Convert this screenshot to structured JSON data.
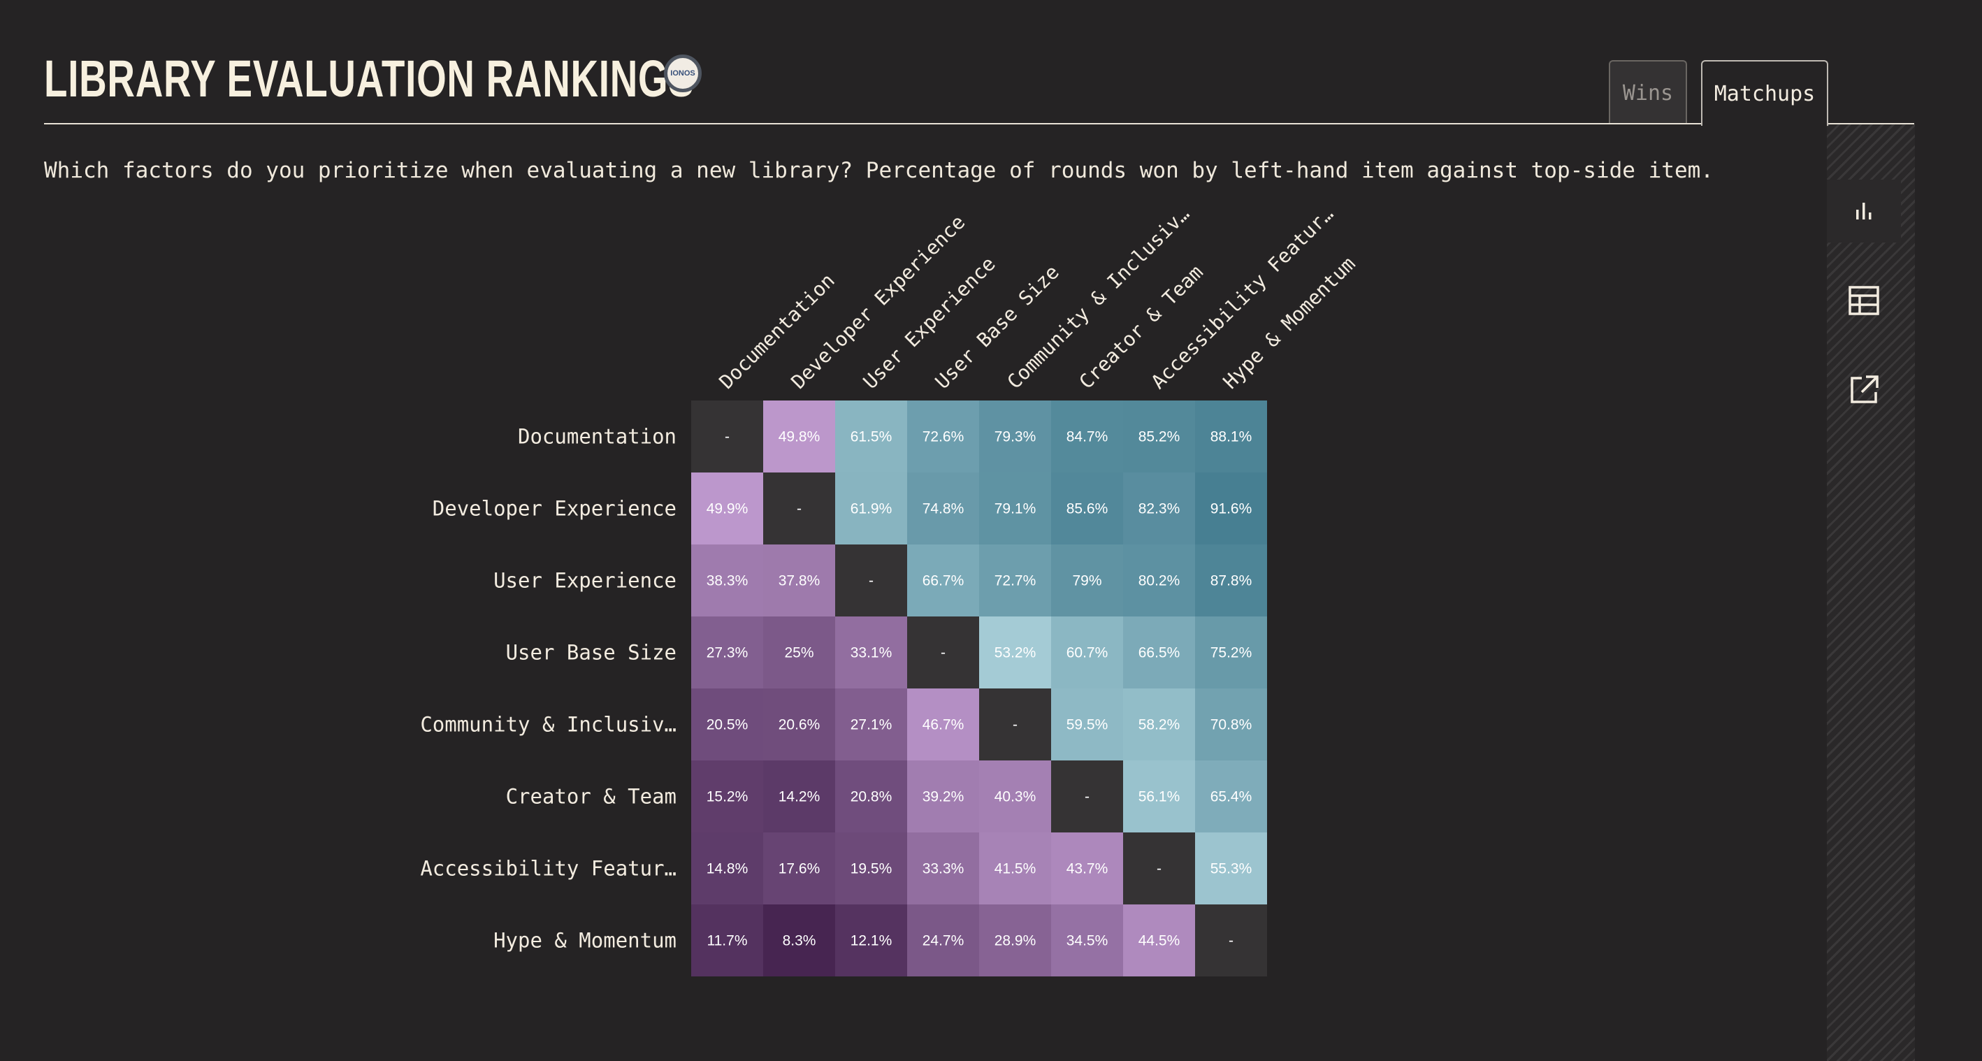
{
  "title": "LIBRARY EVALUATION RANKINGS",
  "logo_text": "IONOS",
  "tabs": [
    {
      "label": "Wins",
      "active": false
    },
    {
      "label": "Matchups",
      "active": true
    }
  ],
  "subtitle": "Which factors do you prioritize when evaluating a new library? Percentage of rounds won by left-hand item against top-side item.",
  "sidebar": {
    "buttons": [
      {
        "icon": "bar-chart-icon",
        "active": true
      },
      {
        "icon": "table-icon",
        "active": false
      },
      {
        "icon": "external-link-icon",
        "active": false
      }
    ]
  },
  "colors": {
    "background": "#252324",
    "diagonal": "#353334",
    "purple_dark": "#45234f",
    "purple_light": "#bc97cc",
    "teal_dark": "#467e91",
    "teal_light": "#b6dae2"
  },
  "chart_data": {
    "type": "heatmap",
    "row_labels": [
      "Documentation",
      "Developer Experience",
      "User Experience",
      "User Base Size",
      "Community & Inclusiv…",
      "Creator & Team",
      "Accessibility Featur…",
      "Hype & Momentum"
    ],
    "col_labels": [
      "Documentation",
      "Developer Experience",
      "User Experience",
      "User Base Size",
      "Community & Inclusiv…",
      "Creator & Team",
      "Accessibility Featur…",
      "Hype & Momentum"
    ],
    "values": [
      [
        null,
        49.8,
        61.5,
        72.6,
        79.3,
        84.7,
        85.2,
        88.1
      ],
      [
        49.9,
        null,
        61.9,
        74.8,
        79.1,
        85.6,
        82.3,
        91.6
      ],
      [
        38.3,
        37.8,
        null,
        66.7,
        72.7,
        79,
        80.2,
        87.8
      ],
      [
        27.3,
        25,
        33.1,
        null,
        53.2,
        60.7,
        66.5,
        75.2
      ],
      [
        20.5,
        20.6,
        27.1,
        46.7,
        null,
        59.5,
        58.2,
        70.8
      ],
      [
        15.2,
        14.2,
        20.8,
        39.2,
        40.3,
        null,
        56.1,
        65.4
      ],
      [
        14.8,
        17.6,
        19.5,
        33.3,
        41.5,
        43.7,
        null,
        55.3
      ],
      [
        11.7,
        8.3,
        12.1,
        24.7,
        28.9,
        34.5,
        44.5,
        null
      ]
    ],
    "labels": [
      [
        "-",
        "49.8%",
        "61.5%",
        "72.6%",
        "79.3%",
        "84.7%",
        "85.2%",
        "88.1%"
      ],
      [
        "49.9%",
        "-",
        "61.9%",
        "74.8%",
        "79.1%",
        "85.6%",
        "82.3%",
        "91.6%"
      ],
      [
        "38.3%",
        "37.8%",
        "-",
        "66.7%",
        "72.7%",
        "79%",
        "80.2%",
        "87.8%"
      ],
      [
        "27.3%",
        "25%",
        "33.1%",
        "-",
        "53.2%",
        "60.7%",
        "66.5%",
        "75.2%"
      ],
      [
        "20.5%",
        "20.6%",
        "27.1%",
        "46.7%",
        "-",
        "59.5%",
        "58.2%",
        "70.8%"
      ],
      [
        "15.2%",
        "14.2%",
        "20.8%",
        "39.2%",
        "40.3%",
        "-",
        "56.1%",
        "65.4%"
      ],
      [
        "14.8%",
        "17.6%",
        "19.5%",
        "33.3%",
        "41.5%",
        "43.7%",
        "-",
        "55.3%"
      ],
      [
        "11.7%",
        "8.3%",
        "12.1%",
        "24.7%",
        "28.9%",
        "34.5%",
        "44.5%",
        "-"
      ]
    ],
    "title": "",
    "xlabel": "",
    "ylabel": ""
  }
}
